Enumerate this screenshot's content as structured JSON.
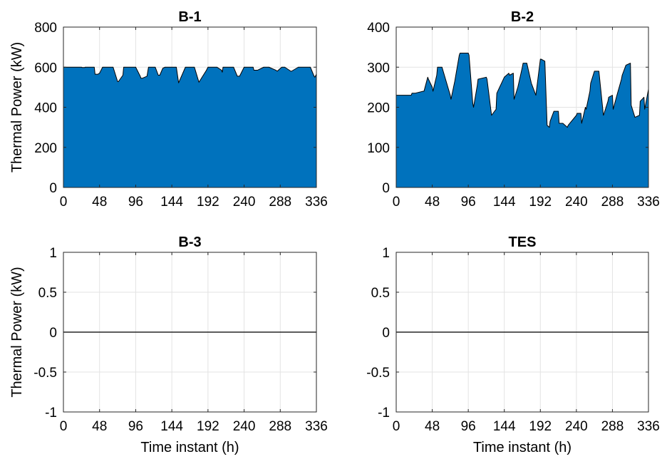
{
  "chart_data": [
    {
      "type": "area",
      "title": "B-1",
      "xlabel": "",
      "ylabel": "Thermal Power (kW)",
      "xlim": [
        0,
        336
      ],
      "ylim": [
        0,
        800
      ],
      "xticks": [
        0,
        48,
        96,
        144,
        192,
        240,
        288,
        336
      ],
      "yticks": [
        0,
        200,
        400,
        600,
        800
      ],
      "fill_color": "#0072bd",
      "x": [
        0,
        24,
        25,
        28,
        29,
        30,
        32,
        33,
        36,
        41,
        42,
        46,
        47,
        48,
        52,
        57,
        60,
        65,
        66,
        72,
        73,
        79,
        80,
        84,
        88,
        93,
        96,
        102,
        103,
        105,
        111,
        113,
        120,
        122,
        126,
        128,
        132,
        135,
        144,
        150,
        153,
        162,
        164,
        172,
        174,
        180,
        185,
        190,
        192,
        202,
        204,
        210,
        211,
        212,
        225,
        226,
        231,
        234,
        240,
        244,
        246,
        252,
        253,
        258,
        266,
        268,
        273,
        282,
        284,
        290,
        292,
        294,
        302,
        303,
        312,
        313,
        320,
        326,
        328,
        333,
        334,
        336
      ],
      "values": [
        600,
        600,
        598,
        598,
        600,
        600,
        600,
        600,
        600,
        600,
        565,
        565,
        568,
        570,
        600,
        600,
        600,
        600,
        600,
        528,
        528,
        560,
        600,
        600,
        600,
        600,
        600,
        555,
        545,
        545,
        555,
        600,
        600,
        600,
        560,
        560,
        595,
        600,
        600,
        600,
        522,
        600,
        600,
        600,
        600,
        525,
        555,
        585,
        600,
        600,
        600,
        585,
        575,
        600,
        600,
        600,
        555,
        555,
        600,
        600,
        600,
        600,
        585,
        585,
        600,
        600,
        600,
        585,
        580,
        600,
        600,
        600,
        580,
        580,
        600,
        600,
        600,
        600,
        600,
        555,
        550,
        565
      ]
    },
    {
      "type": "area",
      "title": "B-2",
      "xlabel": "",
      "ylabel": "",
      "xlim": [
        0,
        336
      ],
      "ylim": [
        0,
        400
      ],
      "xticks": [
        0,
        48,
        96,
        144,
        192,
        240,
        288,
        336
      ],
      "yticks": [
        0,
        100,
        200,
        300,
        400
      ],
      "fill_color": "#0072bd",
      "x": [
        0,
        12,
        13,
        20,
        21,
        24,
        25,
        36,
        37,
        42,
        43,
        48,
        49,
        54,
        55,
        60,
        61,
        72,
        73,
        78,
        84,
        85,
        96,
        97,
        102,
        103,
        108,
        109,
        120,
        121,
        127,
        133,
        134,
        144,
        150,
        151,
        156,
        157,
        162,
        168,
        169,
        174,
        180,
        181,
        186,
        187,
        192,
        193,
        198,
        201,
        204,
        205,
        210,
        216,
        217,
        222,
        228,
        229,
        240,
        241,
        246,
        247,
        252,
        253,
        258,
        259,
        264,
        265,
        270,
        276,
        277,
        282,
        283,
        288,
        289,
        294,
        300,
        301,
        306,
        312,
        313,
        318,
        324,
        325,
        330,
        331,
        336
      ],
      "values": [
        230,
        230,
        230,
        230,
        235,
        235,
        235,
        240,
        240,
        275,
        270,
        250,
        240,
        280,
        300,
        300,
        300,
        230,
        220,
        265,
        330,
        335,
        335,
        330,
        210,
        200,
        255,
        270,
        275,
        270,
        180,
        195,
        235,
        275,
        285,
        280,
        285,
        220,
        250,
        300,
        310,
        310,
        260,
        255,
        230,
        245,
        320,
        320,
        315,
        155,
        150,
        165,
        190,
        190,
        160,
        160,
        150,
        155,
        180,
        185,
        185,
        160,
        200,
        195,
        240,
        260,
        290,
        290,
        290,
        180,
        185,
        215,
        225,
        230,
        195,
        230,
        270,
        280,
        305,
        310,
        205,
        175,
        180,
        215,
        225,
        195,
        245
      ]
    },
    {
      "type": "line",
      "title": "B-3",
      "xlabel": "Time instant (h)",
      "ylabel": "Thermal Power (kW)",
      "xlim": [
        0,
        336
      ],
      "ylim": [
        -1,
        1
      ],
      "xticks": [
        0,
        48,
        96,
        144,
        192,
        240,
        288,
        336
      ],
      "yticks": [
        -1,
        -0.5,
        0,
        0.5,
        1
      ],
      "line_color": "#262626",
      "x": [
        0,
        336
      ],
      "values": [
        0,
        0
      ]
    },
    {
      "type": "line",
      "title": "TES",
      "xlabel": "Time instant (h)",
      "ylabel": "",
      "xlim": [
        0,
        336
      ],
      "ylim": [
        -1,
        1
      ],
      "xticks": [
        0,
        48,
        96,
        144,
        192,
        240,
        288,
        336
      ],
      "yticks": [
        -1,
        -0.5,
        0,
        0.5,
        1
      ],
      "line_color": "#262626",
      "x": [
        0,
        336
      ],
      "values": [
        0,
        0
      ]
    }
  ]
}
